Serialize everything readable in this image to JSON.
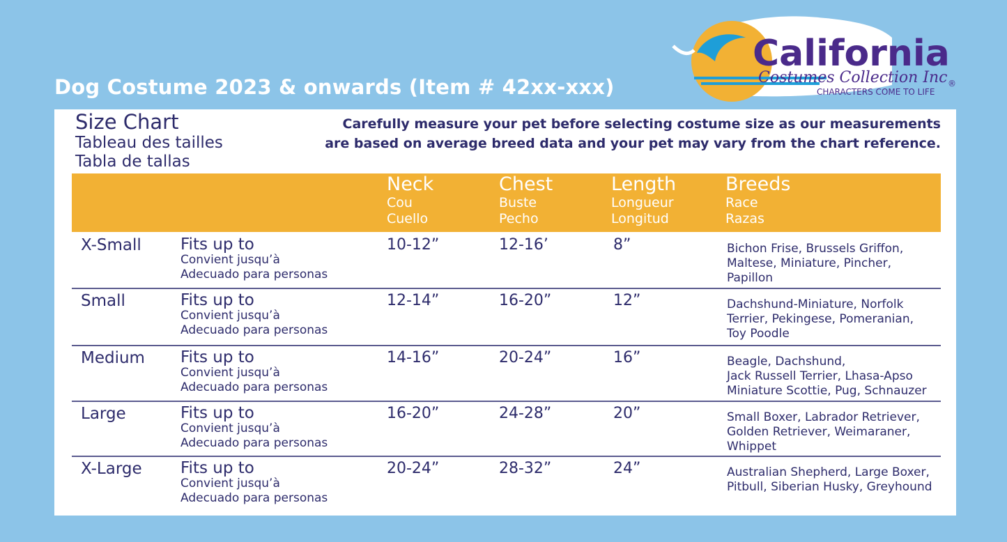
{
  "title": "Dog Costume 2023 & onwards (Item # 42xx-xxx)",
  "logo": {
    "name": "California",
    "sub": "Costumes Collection Inc",
    "tagline": "CHARACTERS COME TO LIFE",
    "mark": "®"
  },
  "heading": {
    "en": "Size Chart",
    "fr": "Tableau des tailles",
    "es": "Tabla de tallas"
  },
  "note": "Carefully measure your pet before selecting costume size as our measurements are based on average breed data and your pet may vary from the chart reference.",
  "columns": [
    {
      "en": "Neck",
      "fr": "Cou",
      "es": "Cuello"
    },
    {
      "en": "Chest",
      "fr": "Buste",
      "es": "Pecho"
    },
    {
      "en": "Length",
      "fr": "Longueur",
      "es": "Longitud"
    },
    {
      "en": "Breeds",
      "fr": "Race",
      "es": "Razas"
    }
  ],
  "rows": [
    {
      "size": "X-Small",
      "fit_en": "Fits up to",
      "fit_fr": "Convient jusqu’à",
      "fit_es": "Adecuado para personas",
      "neck": "10-12”",
      "chest": "12-16’",
      "length": "8”",
      "breeds": [
        "Bichon Frise, Brussels Griffon,",
        "Maltese, Miniature, Pincher,",
        "Papillon"
      ]
    },
    {
      "size": "Small",
      "fit_en": "Fits up to",
      "fit_fr": "Convient jusqu’à",
      "fit_es": "Adecuado para personas",
      "neck": "12-14”",
      "chest": "16-20”",
      "length": "12”",
      "breeds": [
        "Dachshund-Miniature, Norfolk",
        "Terrier, Pekingese, Pomeranian,",
        "Toy Poodle"
      ]
    },
    {
      "size": "Medium",
      "fit_en": "Fits up to",
      "fit_fr": "Convient jusqu’à",
      "fit_es": "Adecuado para personas",
      "neck": "14-16”",
      "chest": "20-24”",
      "length": "16”",
      "breeds": [
        "Beagle, Dachshund,",
        "Jack Russell Terrier, Lhasa-Apso",
        "Miniature Scottie, Pug, Schnauzer"
      ]
    },
    {
      "size": "Large",
      "fit_en": "Fits up to",
      "fit_fr": "Convient jusqu’à",
      "fit_es": "Adecuado para personas",
      "neck": "16-20”",
      "chest": "24-28”",
      "length": "20”",
      "breeds": [
        "Small Boxer, Labrador Retriever,",
        "Golden Retriever, Weimaraner,",
        "Whippet"
      ]
    },
    {
      "size": "X-Large",
      "fit_en": "Fits up to",
      "fit_fr": "Convient jusqu’à",
      "fit_es": "Adecuado para personas",
      "neck": "20-24”",
      "chest": "28-32”",
      "length": "24”",
      "breeds": [
        "Australian Shepherd, Large Boxer,",
        "Pitbull, Siberian Husky, Greyhound"
      ]
    }
  ],
  "colors": {
    "background": "#8cc4e8",
    "header_band": "#f2b134",
    "text": "#2d2b6b",
    "logo_purple": "#4a2a8a"
  }
}
